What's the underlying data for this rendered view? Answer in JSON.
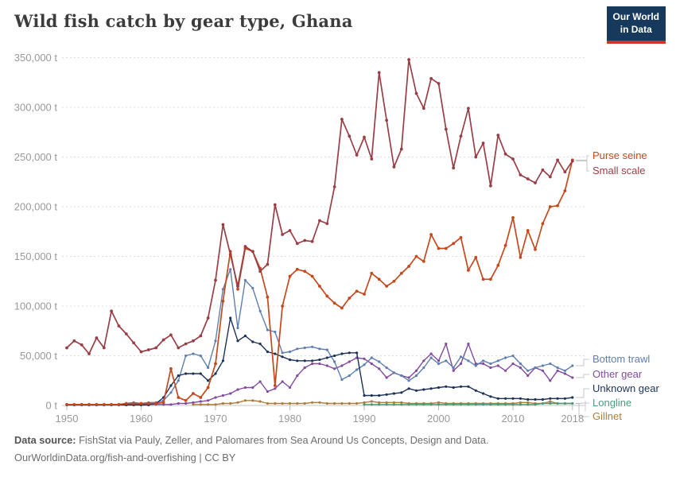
{
  "header": {
    "title": "Wild fish catch by gear type, Ghana",
    "logo": {
      "line1": "Our World",
      "line2": "in Data",
      "bg": "#17395C",
      "accent": "#D0342C"
    }
  },
  "footer": {
    "source_prefix": "Data source:",
    "source_rest": " FishStat via Pauly, Zeller, and Palomares from Sea Around Us Concepts, Design and Data.",
    "link": "OurWorldinData.org/fish-and-overfishing",
    "license_suffix": " | CC BY"
  },
  "chart_data": {
    "type": "line",
    "title": "Wild fish catch by gear type, Ghana",
    "unit": "tonnes",
    "ylim": [
      0,
      350000
    ],
    "grid": true,
    "legend_position": "right-edge-labels",
    "yticks": {
      "values": [
        0,
        50000,
        100000,
        150000,
        200000,
        250000,
        300000,
        350000
      ],
      "labels": [
        "0 t",
        "50,000 t",
        "100,000 t",
        "150,000 t",
        "200,000 t",
        "250,000 t",
        "300,000 t",
        "350,000 t"
      ]
    },
    "xticks": [
      1950,
      1960,
      1970,
      1980,
      1990,
      2000,
      2010,
      2018
    ],
    "x": [
      1950,
      1951,
      1952,
      1953,
      1954,
      1955,
      1956,
      1957,
      1958,
      1959,
      1960,
      1961,
      1962,
      1963,
      1964,
      1965,
      1966,
      1967,
      1968,
      1969,
      1970,
      1971,
      1972,
      1973,
      1974,
      1975,
      1976,
      1977,
      1978,
      1979,
      1980,
      1981,
      1982,
      1983,
      1984,
      1985,
      1986,
      1987,
      1988,
      1989,
      1990,
      1991,
      1992,
      1993,
      1994,
      1995,
      1996,
      1997,
      1998,
      1999,
      2000,
      2001,
      2002,
      2003,
      2004,
      2005,
      2006,
      2007,
      2008,
      2009,
      2010,
      2011,
      2012,
      2013,
      2014,
      2015,
      2016,
      2017,
      2018
    ],
    "series": [
      {
        "name": "Purse seine",
        "color": "#C4491D",
        "values": [
          1000,
          1000,
          1000,
          1000,
          1000,
          1000,
          1000,
          1000,
          2000,
          2000,
          2000,
          2000,
          2000,
          3000,
          37000,
          8000,
          5000,
          12000,
          8000,
          18000,
          42000,
          105000,
          155000,
          117000,
          158000,
          155000,
          138000,
          109000,
          20000,
          100000,
          130000,
          137000,
          135000,
          130000,
          120000,
          110000,
          103000,
          98000,
          108000,
          115000,
          112000,
          133000,
          127000,
          120000,
          125000,
          133000,
          140000,
          150000,
          145000,
          172000,
          158000,
          158000,
          163000,
          169000,
          136000,
          149000,
          127000,
          127000,
          141000,
          161000,
          189000,
          149000,
          176000,
          157000,
          183000,
          200000,
          201000,
          216000,
          247000
        ]
      },
      {
        "name": "Small scale",
        "color": "#9A3E46",
        "values": [
          58000,
          65000,
          61000,
          52000,
          68000,
          58000,
          95000,
          80000,
          72000,
          63000,
          54000,
          56000,
          58000,
          66000,
          71000,
          58000,
          62000,
          65000,
          70000,
          88000,
          126000,
          182000,
          152000,
          120000,
          160000,
          155000,
          135000,
          142000,
          202000,
          172000,
          176000,
          163000,
          166000,
          165000,
          186000,
          183000,
          220000,
          288000,
          271000,
          252000,
          270000,
          248000,
          335000,
          287000,
          240000,
          258000,
          348000,
          314000,
          299000,
          329000,
          324000,
          278000,
          239000,
          271000,
          299000,
          250000,
          264000,
          221000,
          272000,
          253000,
          248000,
          232000,
          228000,
          224000,
          237000,
          230000,
          247000,
          235000,
          246000
        ]
      },
      {
        "name": "Bottom trawl",
        "color": "#5E7FAF",
        "values": [
          500,
          500,
          500,
          500,
          500,
          500,
          500,
          1000,
          2000,
          3000,
          2000,
          3000,
          3000,
          5000,
          13000,
          25000,
          50000,
          52000,
          50000,
          38000,
          65000,
          117000,
          137000,
          78000,
          126000,
          118000,
          95000,
          76000,
          74000,
          53000,
          54000,
          57000,
          58000,
          59000,
          57000,
          56000,
          44000,
          26000,
          30000,
          36000,
          41000,
          48000,
          44000,
          38000,
          33000,
          30000,
          25000,
          30000,
          38000,
          48000,
          42000,
          45000,
          38000,
          49000,
          45000,
          40000,
          45000,
          42000,
          45000,
          48000,
          50000,
          42000,
          35000,
          38000,
          40000,
          42000,
          38000,
          35000,
          40000
        ]
      },
      {
        "name": "Other gear",
        "color": "#834BA0",
        "values": [
          1000,
          1000,
          1000,
          1000,
          1000,
          1000,
          1000,
          1000,
          1000,
          1000,
          1000,
          1000,
          1000,
          1000,
          1000,
          2000,
          2000,
          3000,
          4000,
          5000,
          8000,
          10000,
          12000,
          16000,
          18000,
          18000,
          24000,
          14000,
          17000,
          24000,
          18000,
          30000,
          38000,
          42000,
          42000,
          40000,
          37000,
          40000,
          44000,
          48000,
          47000,
          42000,
          37000,
          28000,
          33000,
          30000,
          28000,
          35000,
          45000,
          52000,
          45000,
          62000,
          35000,
          42000,
          62000,
          42000,
          42000,
          38000,
          40000,
          35000,
          42000,
          38000,
          30000,
          38000,
          35000,
          25000,
          35000,
          32000,
          28000
        ]
      },
      {
        "name": "Unknown gear",
        "color": "#1C3256",
        "values": [
          500,
          500,
          500,
          500,
          500,
          500,
          500,
          500,
          500,
          500,
          500,
          500,
          2000,
          8000,
          20000,
          30000,
          32000,
          32000,
          32000,
          25000,
          32000,
          45000,
          88000,
          65000,
          70000,
          64000,
          62000,
          54000,
          52000,
          49000,
          46000,
          45000,
          45000,
          45000,
          46000,
          48000,
          50000,
          52000,
          53000,
          53000,
          10000,
          10000,
          10000,
          11000,
          12000,
          13000,
          17000,
          15000,
          16000,
          17000,
          18000,
          19000,
          18000,
          19000,
          19000,
          15000,
          12000,
          9000,
          7000,
          7000,
          7000,
          7000,
          6000,
          6000,
          6000,
          7000,
          7000,
          7000,
          8000
        ]
      },
      {
        "name": "Longline",
        "color": "#4C9A7C",
        "values": [
          null,
          null,
          null,
          null,
          null,
          null,
          null,
          null,
          null,
          null,
          null,
          null,
          null,
          null,
          null,
          null,
          null,
          null,
          null,
          null,
          null,
          null,
          null,
          null,
          null,
          null,
          null,
          null,
          null,
          null,
          null,
          null,
          null,
          null,
          null,
          null,
          null,
          null,
          null,
          null,
          1000,
          1000,
          1000,
          1000,
          1000,
          1000,
          1000,
          1000,
          1000,
          1000,
          1000,
          1000,
          1000,
          1000,
          1000,
          1000,
          1000,
          1000,
          1000,
          1000,
          1000,
          1000,
          1000,
          1000,
          2000,
          2000,
          2000,
          2000,
          2000
        ]
      },
      {
        "name": "Gillnet",
        "color": "#AE7E39",
        "values": [
          null,
          null,
          null,
          null,
          null,
          null,
          null,
          null,
          null,
          null,
          null,
          null,
          null,
          null,
          null,
          null,
          null,
          1000,
          1000,
          1000,
          1000,
          2000,
          2000,
          3000,
          5000,
          5000,
          4000,
          2000,
          2000,
          2000,
          2000,
          2000,
          2000,
          3000,
          3000,
          2000,
          2000,
          2000,
          2000,
          2000,
          3000,
          4000,
          3000,
          3000,
          3000,
          3000,
          2000,
          2000,
          2000,
          2000,
          3000,
          2000,
          2000,
          2000,
          2000,
          2000,
          2000,
          2000,
          2000,
          2000,
          2000,
          3000,
          3000,
          2000,
          2000,
          4000,
          2000,
          2000,
          2000
        ]
      }
    ]
  }
}
